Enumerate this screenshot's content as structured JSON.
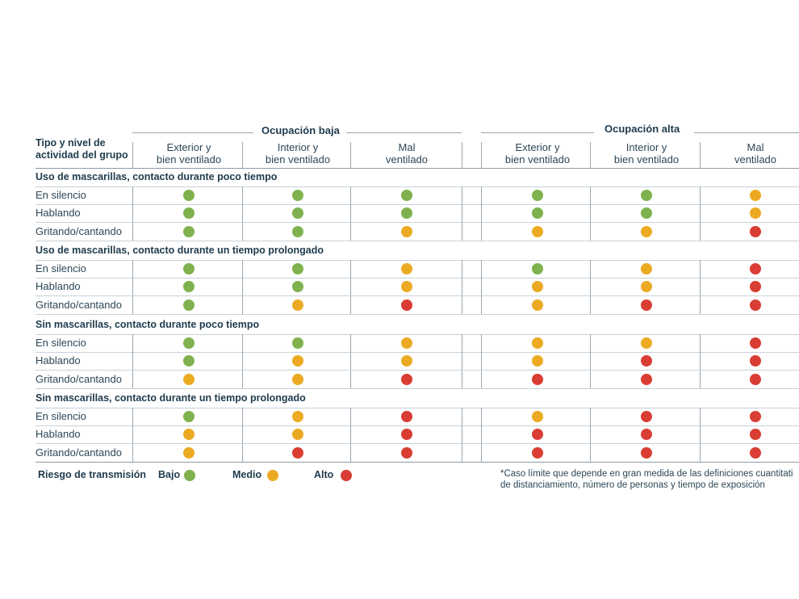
{
  "header": {
    "corner_line1": "Tipo y nivel de",
    "corner_line2": "actividad del grupo",
    "groups": [
      {
        "title": "Ocupación baja"
      },
      {
        "title": "Ocupación alta"
      }
    ],
    "columns": [
      {
        "line1": "Exterior y",
        "line2": "bien ventilado"
      },
      {
        "line1": "Interior y",
        "line2": "bien ventilado"
      },
      {
        "line1": "Mal",
        "line2": "ventilado"
      },
      {
        "line1": "Exterior y",
        "line2": "bien ventilado"
      },
      {
        "line1": "Interior y",
        "line2": "bien ventilado"
      },
      {
        "line1": "Mal",
        "line2": "ventilado"
      }
    ]
  },
  "sections": [
    {
      "title": "Uso de mascarillas, contacto durante poco tiempo",
      "rows": [
        {
          "label": "En silencio",
          "risks": [
            "bajo",
            "bajo",
            "bajo",
            "bajo",
            "bajo",
            "medio"
          ]
        },
        {
          "label": "Hablando",
          "risks": [
            "bajo",
            "bajo",
            "bajo",
            "bajo",
            "bajo",
            "medio"
          ]
        },
        {
          "label": "Gritando/cantando",
          "risks": [
            "bajo",
            "bajo",
            "medio",
            "medio",
            "medio",
            "alto"
          ]
        }
      ]
    },
    {
      "title": "Uso de mascarillas, contacto durante un tiempo prolongado",
      "rows": [
        {
          "label": "En silencio",
          "risks": [
            "bajo",
            "bajo",
            "medio",
            "bajo",
            "medio",
            "alto"
          ]
        },
        {
          "label": "Hablando",
          "risks": [
            "bajo",
            "bajo",
            "medio",
            "medio",
            "medio",
            "alto"
          ]
        },
        {
          "label": "Gritando/cantando",
          "risks": [
            "bajo",
            "medio",
            "alto",
            "medio",
            "alto",
            "alto"
          ]
        }
      ]
    },
    {
      "title": "Sin mascarillas, contacto durante poco tiempo",
      "rows": [
        {
          "label": "En silencio",
          "risks": [
            "bajo",
            "bajo",
            "medio",
            "medio",
            "medio",
            "alto"
          ]
        },
        {
          "label": "Hablando",
          "risks": [
            "bajo",
            "medio",
            "medio",
            "medio",
            "alto",
            "alto"
          ]
        },
        {
          "label": "Gritando/cantando",
          "risks": [
            "medio",
            "medio",
            "alto",
            "alto",
            "alto",
            "alto"
          ]
        }
      ]
    },
    {
      "title": "Sin mascarillas, contacto durante un tiempo prolongado",
      "rows": [
        {
          "label": "En silencio",
          "risks": [
            "bajo",
            "medio",
            "alto",
            "medio",
            "alto",
            "alto"
          ]
        },
        {
          "label": "Hablando",
          "risks": [
            "medio",
            "medio",
            "alto",
            "alto",
            "alto",
            "alto"
          ]
        },
        {
          "label": "Gritando/cantando",
          "risks": [
            "medio",
            "alto",
            "alto",
            "alto",
            "alto",
            "alto"
          ]
        }
      ]
    }
  ],
  "legend": {
    "title": "Riesgo de transmisión",
    "items": [
      {
        "key": "bajo",
        "label": "Bajo"
      },
      {
        "key": "medio",
        "label": "Medio"
      },
      {
        "key": "alto",
        "label": "Alto"
      }
    ]
  },
  "risk_colors": {
    "bajo": "#7fb24f",
    "medio": "#ecaa23",
    "alto": "#d93d33"
  },
  "footnote": {
    "line1": "*Caso límite que depende en gran medida de las definiciones cuantitati",
    "line2": "de distanciamiento, número de personas y tiempo de exposición"
  }
}
